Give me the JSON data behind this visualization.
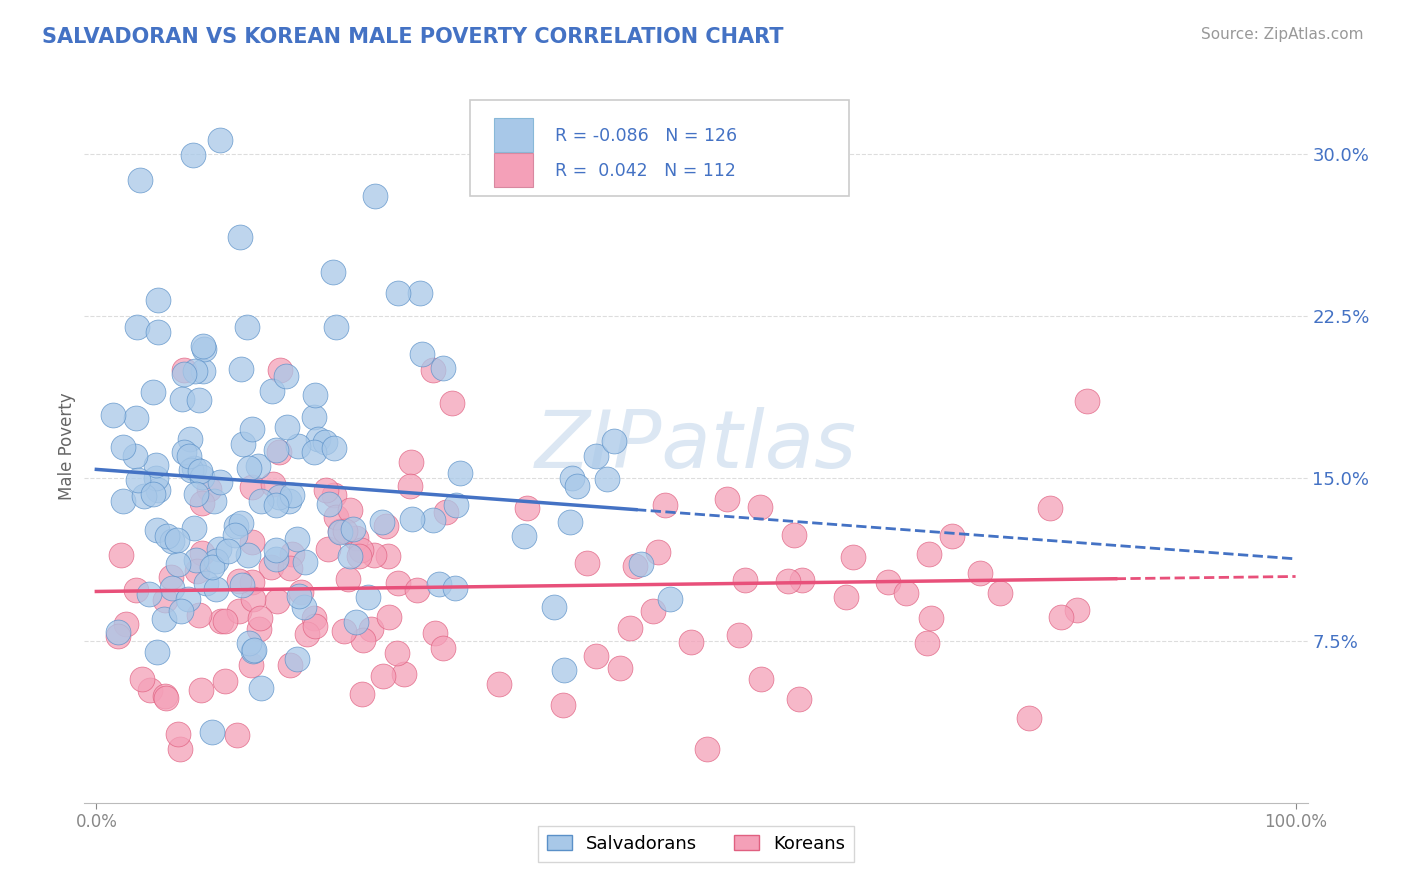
{
  "title": "SALVADORAN VS KOREAN MALE POVERTY CORRELATION CHART",
  "source": "Source: ZipAtlas.com",
  "ylabel": "Male Poverty",
  "y_tick_labels": [
    "7.5%",
    "15.0%",
    "22.5%",
    "30.0%"
  ],
  "y_tick_values": [
    0.075,
    0.15,
    0.225,
    0.3
  ],
  "xlim": [
    0.0,
    1.0
  ],
  "ylim": [
    0.0,
    0.325
  ],
  "legend_label1": "Salvadorans",
  "legend_label2": "Koreans",
  "salvadoran_fill": "#A8C8E8",
  "salvadoran_edge": "#5A90C8",
  "korean_fill": "#F4A0B8",
  "korean_edge": "#E06080",
  "sal_line_color": "#4472C4",
  "kor_line_color": "#E8507A",
  "r1": -0.086,
  "r2": 0.042,
  "n1": 126,
  "n2": 112,
  "background_color": "#FFFFFF",
  "grid_color": "#DDDDDD",
  "title_color": "#4472C4",
  "legend_text_color": "#4472C4",
  "source_color": "#999999",
  "ylabel_color": "#666666",
  "ytick_color": "#4472C4",
  "watermark_color": "#C5D8EC"
}
